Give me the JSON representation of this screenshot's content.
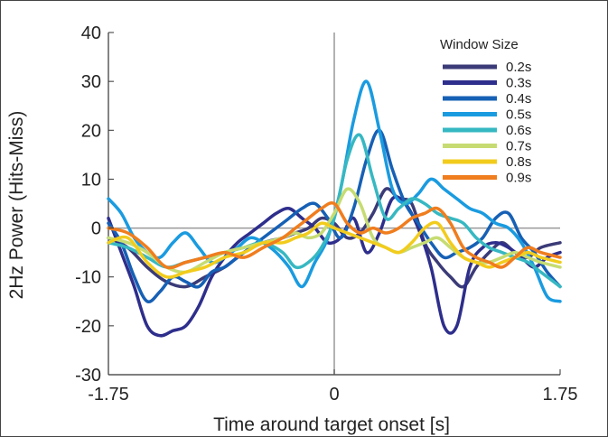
{
  "chart_data": {
    "type": "line",
    "xlabel": "Time around target onset [s]",
    "ylabel": "2Hz Power (Hits-Miss)",
    "xlim": [
      -1.75,
      1.75
    ],
    "ylim": [
      -30,
      40
    ],
    "xticks": [
      "-1.75",
      "0",
      "1.75"
    ],
    "yticks": [
      "40",
      "30",
      "20",
      "10",
      "0",
      "-10",
      "-20",
      "-30"
    ],
    "grid": false,
    "reference_lines": {
      "x": 0,
      "y": 0
    },
    "legend": {
      "title": "Window Size",
      "placement": "top-right"
    },
    "series": [
      {
        "name": "0.2s",
        "color": "#3b3b78",
        "x": [
          -1.75,
          -1.6,
          -1.45,
          -1.3,
          -1.15,
          -1.0,
          -0.85,
          -0.7,
          -0.55,
          -0.4,
          -0.3,
          -0.2,
          -0.1,
          0.0,
          0.1,
          0.2,
          0.3,
          0.4,
          0.5,
          0.6,
          0.7,
          0.8,
          0.9,
          1.0,
          1.1,
          1.2,
          1.3,
          1.4,
          1.5,
          1.6,
          1.75
        ],
        "y": [
          -2,
          -4,
          -8,
          -11,
          -12,
          -10,
          -8,
          -5,
          -3,
          -2,
          -1,
          0,
          2,
          1,
          -2,
          -1,
          3,
          8,
          6,
          5,
          -3,
          -7,
          -10,
          -12,
          -8,
          -5,
          -3,
          -5,
          -6,
          -4,
          -3
        ]
      },
      {
        "name": "0.3s",
        "color": "#2e2e8c",
        "x": [
          -1.75,
          -1.65,
          -1.55,
          -1.45,
          -1.35,
          -1.25,
          -1.15,
          -1.05,
          -0.95,
          -0.85,
          -0.75,
          -0.65,
          -0.55,
          -0.45,
          -0.35,
          -0.25,
          -0.15,
          -0.05,
          0.05,
          0.15,
          0.25,
          0.35,
          0.45,
          0.55,
          0.65,
          0.75,
          0.85,
          0.95,
          1.05,
          1.15,
          1.25,
          1.35,
          1.45,
          1.55,
          1.65,
          1.75
        ],
        "y": [
          2,
          -5,
          -12,
          -20,
          -22,
          -21,
          -20,
          -16,
          -10,
          -6,
          -3,
          -1,
          1,
          3,
          4,
          2,
          0,
          -3,
          -2,
          2,
          -5,
          -1,
          6,
          5,
          0,
          -8,
          -20,
          -20,
          -8,
          -4,
          -3,
          -4,
          -6,
          -8,
          -6,
          -5
        ]
      },
      {
        "name": "0.4s",
        "color": "#1660b5",
        "x": [
          -1.75,
          -1.65,
          -1.55,
          -1.45,
          -1.35,
          -1.25,
          -1.15,
          -1.05,
          -0.95,
          -0.85,
          -0.75,
          -0.65,
          -0.55,
          -0.45,
          -0.35,
          -0.25,
          -0.15,
          -0.05,
          0.05,
          0.15,
          0.25,
          0.35,
          0.45,
          0.55,
          0.65,
          0.75,
          0.85,
          0.95,
          1.05,
          1.15,
          1.25,
          1.35,
          1.45,
          1.55,
          1.65,
          1.75
        ],
        "y": [
          1,
          -3,
          -10,
          -15,
          -13,
          -10,
          -11,
          -12,
          -9,
          -8,
          -6,
          -4,
          -2,
          0,
          2,
          4,
          5,
          2,
          -2,
          4,
          14,
          20,
          12,
          5,
          1,
          -3,
          -6,
          -5,
          -4,
          -2,
          2,
          3,
          -2,
          -5,
          -9,
          -12
        ]
      },
      {
        "name": "0.5s",
        "color": "#1a9be0",
        "x": [
          -1.75,
          -1.65,
          -1.55,
          -1.45,
          -1.35,
          -1.25,
          -1.15,
          -1.05,
          -0.95,
          -0.85,
          -0.75,
          -0.65,
          -0.55,
          -0.45,
          -0.35,
          -0.25,
          -0.15,
          -0.05,
          0.05,
          0.15,
          0.25,
          0.35,
          0.45,
          0.55,
          0.65,
          0.75,
          0.85,
          0.95,
          1.05,
          1.15,
          1.25,
          1.35,
          1.45,
          1.55,
          1.65,
          1.75
        ],
        "y": [
          6,
          3,
          -2,
          -5,
          -6,
          -3,
          -1,
          -4,
          -7,
          -6,
          -4,
          -2,
          -3,
          -5,
          -8,
          -12,
          -7,
          -2,
          8,
          22,
          30,
          20,
          8,
          5,
          7,
          10,
          8,
          6,
          4,
          3,
          1,
          0,
          -3,
          -8,
          -14,
          -15
        ]
      },
      {
        "name": "0.6s",
        "color": "#36b8c2",
        "x": [
          -1.75,
          -1.6,
          -1.45,
          -1.3,
          -1.15,
          -1.0,
          -0.85,
          -0.7,
          -0.55,
          -0.4,
          -0.3,
          -0.2,
          -0.1,
          0.0,
          0.1,
          0.2,
          0.3,
          0.4,
          0.5,
          0.6,
          0.7,
          0.8,
          0.9,
          1.0,
          1.1,
          1.2,
          1.3,
          1.4,
          1.5,
          1.6,
          1.75
        ],
        "y": [
          -3,
          -4,
          -6,
          -8,
          -7,
          -6,
          -5,
          -4,
          -3,
          -5,
          -8,
          -7,
          -4,
          2,
          14,
          19,
          10,
          2,
          4,
          6,
          5,
          3,
          2,
          1,
          -2,
          -4,
          -5,
          -6,
          -7,
          -9,
          -12
        ]
      },
      {
        "name": "0.7s",
        "color": "#c6dc72",
        "x": [
          -1.75,
          -1.6,
          -1.45,
          -1.3,
          -1.15,
          -1.0,
          -0.85,
          -0.7,
          -0.55,
          -0.4,
          -0.3,
          -0.2,
          -0.1,
          0.0,
          0.1,
          0.2,
          0.3,
          0.4,
          0.5,
          0.6,
          0.7,
          0.8,
          0.9,
          1.0,
          1.1,
          1.2,
          1.3,
          1.4,
          1.5,
          1.6,
          1.75
        ],
        "y": [
          -2,
          -3,
          -5,
          -8,
          -9,
          -7,
          -5,
          -4,
          -3,
          -2,
          -1,
          -2,
          -1,
          3,
          8,
          5,
          -2,
          -4,
          -5,
          -4,
          -3,
          -2,
          -4,
          -6,
          -7,
          -7,
          -6,
          -5,
          -6,
          -7,
          -8
        ]
      },
      {
        "name": "0.8s",
        "color": "#f2cc1d",
        "x": [
          -1.75,
          -1.6,
          -1.45,
          -1.3,
          -1.15,
          -1.0,
          -0.85,
          -0.7,
          -0.55,
          -0.4,
          -0.3,
          -0.2,
          -0.1,
          0.0,
          0.1,
          0.2,
          0.3,
          0.4,
          0.5,
          0.6,
          0.7,
          0.8,
          0.9,
          1.0,
          1.1,
          1.2,
          1.3,
          1.4,
          1.5,
          1.6,
          1.75
        ],
        "y": [
          -3,
          -2,
          -7,
          -10,
          -9,
          -8,
          -6,
          -5,
          -3,
          -3,
          -2,
          -1,
          1,
          0,
          -1,
          -2,
          -3,
          -4,
          -5,
          -3,
          0,
          1,
          -3,
          -6,
          -7,
          -8,
          -7,
          -6,
          -5,
          -6,
          -7
        ]
      },
      {
        "name": "0.9s",
        "color": "#f07d1e",
        "x": [
          -1.75,
          -1.6,
          -1.45,
          -1.3,
          -1.15,
          -1.0,
          -0.85,
          -0.7,
          -0.55,
          -0.4,
          -0.3,
          -0.2,
          -0.1,
          0.0,
          0.1,
          0.2,
          0.3,
          0.4,
          0.5,
          0.6,
          0.7,
          0.8,
          0.9,
          1.0,
          1.1,
          1.2,
          1.3,
          1.4,
          1.5,
          1.6,
          1.75
        ],
        "y": [
          0,
          -1,
          -4,
          -8,
          -7,
          -6,
          -5,
          -6,
          -4,
          -2,
          0,
          2,
          4,
          5,
          1,
          -1,
          0,
          -1,
          0,
          2,
          3,
          4,
          1,
          -4,
          -6,
          -7,
          -8,
          -6,
          -4,
          -5,
          -6
        ]
      }
    ]
  }
}
